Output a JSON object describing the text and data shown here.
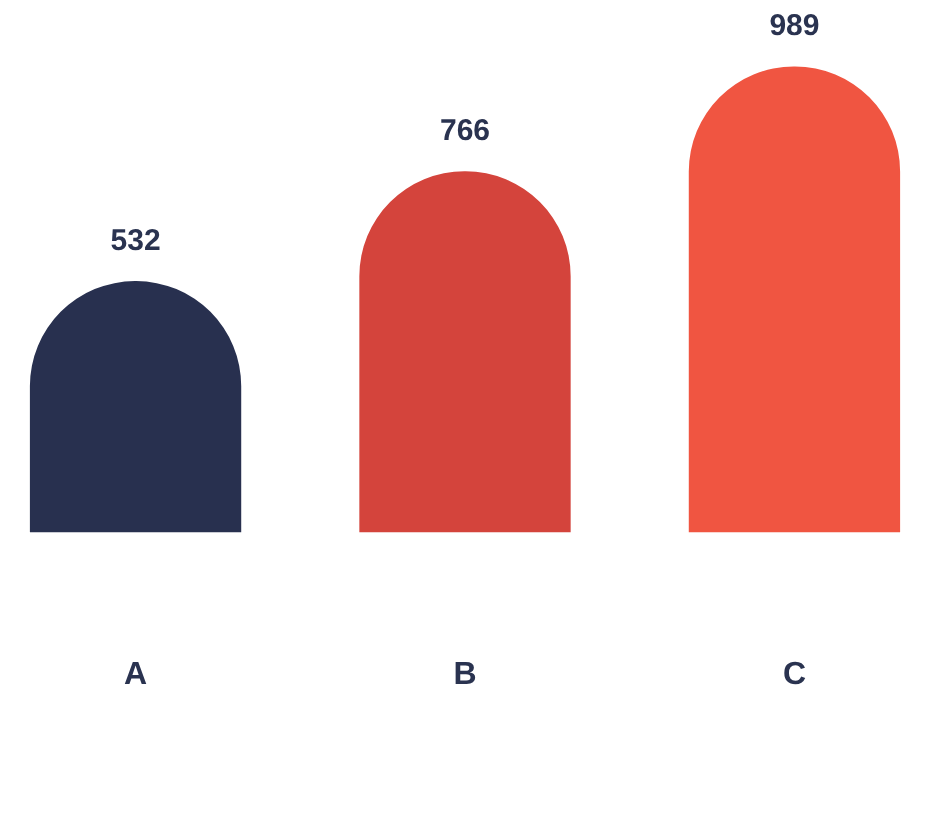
{
  "chart_data": {
    "type": "bar",
    "categories": [
      "A",
      "B",
      "C"
    ],
    "values": [
      532,
      766,
      989
    ],
    "colors": [
      "#28304f",
      "#d4443c",
      "#f05541"
    ],
    "data_labels": true
  }
}
